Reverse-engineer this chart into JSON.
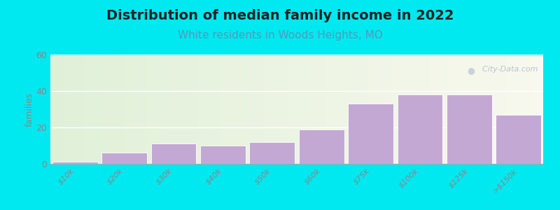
{
  "title": "Distribution of median family income in 2022",
  "subtitle": "White residents in Woods Heights, MO",
  "ylabel": "families",
  "categories": [
    "$10k",
    "$20k",
    "$30k",
    "$40k",
    "$50k",
    "$60k",
    "$75k",
    "$100k",
    "$125k",
    ">$150k"
  ],
  "values": [
    1,
    6,
    11,
    10,
    12,
    19,
    33,
    38,
    38,
    27
  ],
  "ylim": [
    0,
    60
  ],
  "yticks": [
    0,
    20,
    40,
    60
  ],
  "bar_color": "#c4a8d4",
  "bar_edge_color": "#ffffff",
  "background_outer": "#00e8f0",
  "title_fontsize": 14,
  "title_color": "#222222",
  "subtitle_fontsize": 11,
  "subtitle_color": "#5599bb",
  "watermark_text": "  City-Data.com",
  "watermark_color": "#aabbcc",
  "tick_color": "#888888",
  "tick_fontsize": 8,
  "ylabel_fontsize": 9,
  "ylabel_color": "#888888"
}
